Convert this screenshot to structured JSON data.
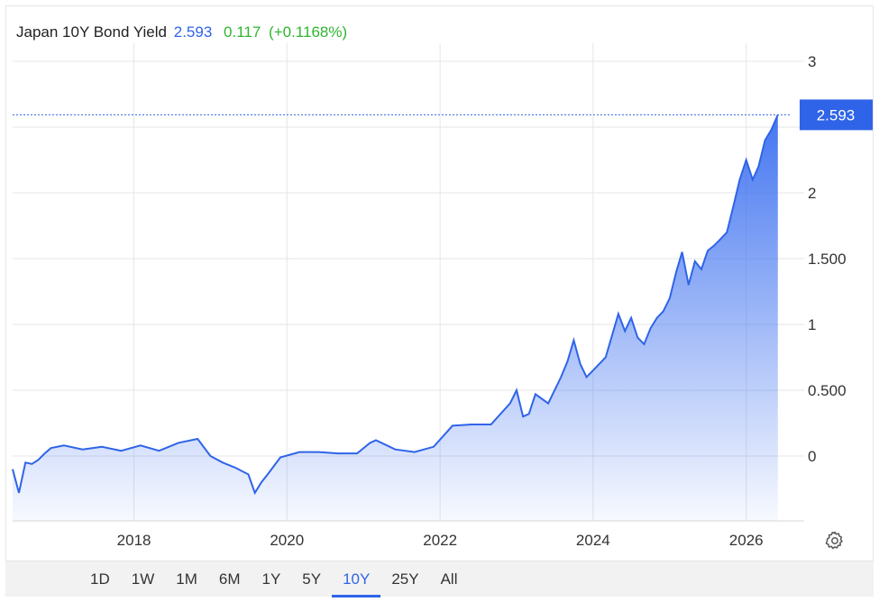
{
  "header": {
    "name": "Japan 10Y Bond Yield",
    "last": "2.593",
    "change": "0.117",
    "change_pct": "(+0.1168%)"
  },
  "last_label": "2.593",
  "colors": {
    "line": "#2f64e8",
    "area_top": "#3b6ff0",
    "positive": "#2fb52f",
    "grid": "#e6e6e6",
    "axis_text": "#333333"
  },
  "ranges": {
    "items": [
      "1D",
      "1W",
      "1M",
      "6M",
      "1Y",
      "5Y",
      "10Y",
      "25Y",
      "All"
    ],
    "active": "10Y"
  },
  "icons": {
    "settings": "gear-icon"
  },
  "chart_data": {
    "type": "area",
    "title": "",
    "xlabel": "",
    "ylabel": "",
    "x_ticks": [
      "2018",
      "2020",
      "2022",
      "2024",
      "2026"
    ],
    "y_ticks": [
      "0",
      "0.500",
      "1",
      "1.500",
      "2",
      "3"
    ],
    "ylim": [
      -0.5,
      3.3
    ],
    "xlim": [
      "2016-06-01",
      "2026-08-01"
    ],
    "grid": true,
    "y_axis_side": "right",
    "series": [
      {
        "x": [
          "2016-06-01",
          "2016-07-01",
          "2016-08-01",
          "2016-09-01",
          "2016-10-01",
          "2016-11-01",
          "2016-12-01",
          "2017-02-01",
          "2017-05-01",
          "2017-08-01",
          "2017-11-01",
          "2018-02-01",
          "2018-05-01",
          "2018-08-01",
          "2018-11-01",
          "2019-01-01",
          "2019-03-01",
          "2019-05-01",
          "2019-07-01",
          "2019-08-01",
          "2019-09-01",
          "2019-10-01",
          "2019-12-01",
          "2020-03-01",
          "2020-06-01",
          "2020-09-01",
          "2020-12-01",
          "2021-02-01",
          "2021-03-01",
          "2021-06-01",
          "2021-09-01",
          "2021-12-01",
          "2022-02-01",
          "2022-03-01",
          "2022-06-01",
          "2022-09-01",
          "2022-12-01",
          "2023-01-01",
          "2023-02-01",
          "2023-03-01",
          "2023-04-01",
          "2023-06-01",
          "2023-08-01",
          "2023-09-01",
          "2023-10-01",
          "2023-11-01",
          "2023-12-01",
          "2024-01-01",
          "2024-03-01",
          "2024-05-01",
          "2024-06-01",
          "2024-07-01",
          "2024-08-01",
          "2024-09-01",
          "2024-10-01",
          "2024-11-01",
          "2024-12-01",
          "2025-01-01",
          "2025-02-01",
          "2025-03-01",
          "2025-04-01",
          "2025-05-01",
          "2025-06-01",
          "2025-07-01",
          "2025-08-01",
          "2025-09-01",
          "2025-10-01",
          "2025-11-01",
          "2025-12-01",
          "2026-01-01",
          "2026-02-01",
          "2026-03-01",
          "2026-04-01",
          "2026-05-01",
          "2026-06-01"
        ],
        "values": [
          -0.1,
          -0.28,
          -0.05,
          -0.06,
          -0.03,
          0.02,
          0.06,
          0.08,
          0.05,
          0.07,
          0.04,
          0.08,
          0.04,
          0.1,
          0.13,
          0.0,
          -0.05,
          -0.09,
          -0.14,
          -0.28,
          -0.2,
          -0.14,
          -0.01,
          0.03,
          0.03,
          0.02,
          0.02,
          0.1,
          0.12,
          0.05,
          0.03,
          0.07,
          0.18,
          0.23,
          0.24,
          0.24,
          0.4,
          0.5,
          0.3,
          0.32,
          0.47,
          0.4,
          0.6,
          0.72,
          0.88,
          0.7,
          0.6,
          0.65,
          0.75,
          1.08,
          0.95,
          1.05,
          0.9,
          0.85,
          0.97,
          1.05,
          1.1,
          1.2,
          1.4,
          1.55,
          1.3,
          1.48,
          1.42,
          1.56,
          1.6,
          1.65,
          1.7,
          1.9,
          2.1,
          2.25,
          2.1,
          2.2,
          2.4,
          2.48,
          2.593
        ]
      }
    ]
  }
}
